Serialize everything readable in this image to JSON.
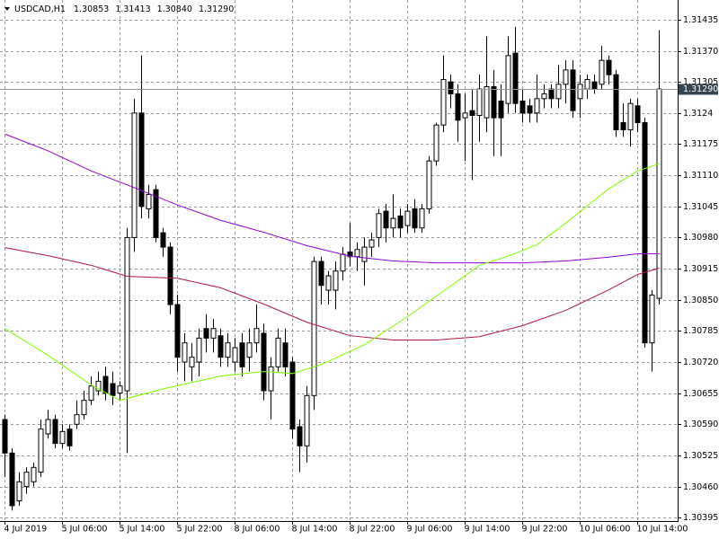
{
  "chart_data": {
    "type": "candlestick",
    "title": "USDCAD,H1",
    "ohlc_labels": [
      "1.30853",
      "1.31413",
      "1.30840",
      "1.31290"
    ],
    "categories": [
      "4 Jul 2019",
      null,
      null,
      null,
      null,
      null,
      null,
      null,
      "5 Jul 06:00",
      null,
      null,
      null,
      null,
      null,
      null,
      null,
      "5 Jul 14:00",
      null,
      null,
      null,
      null,
      null,
      null,
      null,
      "5 Jul 22:00",
      null,
      null,
      null,
      null,
      null,
      null,
      null,
      "8 Jul 06:00",
      null,
      null,
      null,
      null,
      null,
      null,
      null,
      "8 Jul 14:00",
      null,
      null,
      null,
      null,
      null,
      null,
      null,
      "8 Jul 22:00",
      null,
      null,
      null,
      null,
      null,
      null,
      null,
      "9 Jul 06:00",
      null,
      null,
      null,
      null,
      null,
      null,
      null,
      "9 Jul 14:00",
      null,
      null,
      null,
      null,
      null,
      null,
      null,
      "9 Jul 22:00",
      null,
      null,
      null,
      null,
      null,
      null,
      null,
      "10 Jul 06:00",
      null,
      null,
      null,
      null,
      null,
      null,
      null,
      "10 Jul 14:00",
      null,
      null,
      null
    ],
    "open": [
      1.306,
      1.3053,
      1.3043,
      1.3046,
      1.3047,
      1.3049,
      1.3057,
      1.306,
      1.3055,
      1.3058,
      1.3059,
      1.3061,
      1.3064,
      1.3066,
      1.3069,
      1.30675,
      1.30655,
      1.3066,
      1.3098,
      1.3124,
      1.3104,
      1.3108,
      1.3099,
      1.3096,
      1.3084,
      1.3072,
      1.3071,
      1.3072,
      1.3079,
      1.3077,
      1.30775,
      1.3073,
      1.3072,
      1.3076,
      1.3073,
      1.3076,
      1.3078,
      1.3066,
      1.3071,
      1.3076,
      1.3072,
      1.30585,
      1.30545,
      1.3065,
      1.3093,
      1.3087,
      1.3087,
      1.3091,
      1.3095,
      1.3094,
      1.3093,
      1.3096,
      1.3098,
      1.31035,
      1.31,
      1.31025,
      1.31005,
      1.3104,
      1.31,
      1.3104,
      1.3114,
      1.31215,
      1.31305,
      1.3128,
      1.3123,
      1.31245,
      1.31235,
      1.3123,
      1.31295,
      1.31265,
      1.3126,
      1.31365,
      1.31265,
      1.31255,
      1.3124,
      1.3127,
      1.3129,
      1.3127,
      1.313,
      1.3133,
      1.3127,
      1.3129,
      1.31305,
      1.313,
      1.3135,
      1.3132,
      1.3122,
      1.31205,
      1.31255,
      1.3122,
      1.3076,
      1.30853
    ],
    "high": [
      1.3061,
      1.3054,
      1.3049,
      1.305,
      1.3051,
      1.306,
      1.3062,
      1.3061,
      1.3059,
      1.3059,
      1.3064,
      1.3066,
      1.3069,
      1.307,
      1.3071,
      1.307,
      1.3068,
      1.31,
      1.3127,
      1.3136,
      1.3109,
      1.3109,
      1.31,
      1.3097,
      1.3086,
      1.3078,
      1.3076,
      1.3079,
      1.3082,
      1.3081,
      1.3079,
      1.3078,
      1.3077,
      1.3078,
      1.3079,
      1.3084,
      1.308,
      1.3073,
      1.3079,
      1.3079,
      1.3073,
      1.306,
      1.3067,
      1.3094,
      1.3094,
      1.3091,
      1.3093,
      1.3096,
      1.3101,
      1.3097,
      1.3098,
      1.3099,
      1.3104,
      1.3105,
      1.3107,
      1.3104,
      1.3105,
      1.3106,
      1.3105,
      1.3115,
      1.3122,
      1.3136,
      1.3132,
      1.313,
      1.3128,
      1.3129,
      1.3132,
      1.314,
      1.3133,
      1.313,
      1.314,
      1.3142,
      1.3129,
      1.3127,
      1.3132,
      1.313,
      1.313,
      1.3134,
      1.3135,
      1.3135,
      1.3132,
      1.3132,
      1.3132,
      1.3138,
      1.3136,
      1.3133,
      1.3126,
      1.3127,
      1.3127,
      1.3123,
      1.3087,
      1.31413
    ],
    "low": [
      1.3048,
      1.3041,
      1.3042,
      1.30445,
      1.3046,
      1.3048,
      1.3056,
      1.3054,
      1.3054,
      1.30535,
      1.3058,
      1.306,
      1.3063,
      1.3065,
      1.3064,
      1.3063,
      1.3064,
      1.3053,
      1.3095,
      1.3102,
      1.3102,
      1.3097,
      1.3094,
      1.3082,
      1.307,
      1.3068,
      1.3068,
      1.3069,
      1.3074,
      1.3074,
      1.3071,
      1.3071,
      1.307,
      1.3069,
      1.307,
      1.3074,
      1.3064,
      1.306,
      1.307,
      1.3069,
      1.3056,
      1.3049,
      1.3051,
      1.3062,
      1.3084,
      1.3084,
      1.3083,
      1.3089,
      1.3092,
      1.3091,
      1.3088,
      1.3094,
      1.3096,
      1.3097,
      1.3098,
      1.3098,
      1.3099,
      1.3099,
      1.3099,
      1.3103,
      1.3113,
      1.312,
      1.3125,
      1.3118,
      1.3114,
      1.311,
      1.3118,
      1.312,
      1.3115,
      1.3115,
      1.3124,
      1.3124,
      1.3122,
      1.3122,
      1.3122,
      1.3125,
      1.3125,
      1.3125,
      1.3126,
      1.3123,
      1.3123,
      1.3127,
      1.3128,
      1.3129,
      1.313,
      1.3119,
      1.3119,
      1.3117,
      1.312,
      1.3075,
      1.307,
      1.3084
    ],
    "close": [
      1.3053,
      1.3042,
      1.3047,
      1.3049,
      1.305,
      1.3058,
      1.306,
      1.3055,
      1.30575,
      1.30545,
      1.3061,
      1.3064,
      1.3067,
      1.3068,
      1.30655,
      1.3065,
      1.3067,
      1.3098,
      1.3124,
      1.31045,
      1.3107,
      1.3098,
      1.3096,
      1.3084,
      1.3073,
      1.3076,
      1.3073,
      1.3077,
      1.3077,
      1.3079,
      1.3073,
      1.3076,
      1.3075,
      1.3071,
      1.3076,
      1.3079,
      1.3066,
      1.3071,
      1.3077,
      1.3071,
      1.3058,
      1.30545,
      1.3065,
      1.3093,
      1.3088,
      1.309,
      1.3091,
      1.30945,
      1.3094,
      1.30955,
      1.3096,
      1.30975,
      1.3103,
      1.31,
      1.3102,
      1.31,
      1.31035,
      1.31,
      1.3104,
      1.3114,
      1.31215,
      1.3131,
      1.3128,
      1.31225,
      1.3124,
      1.31235,
      1.3129,
      1.31295,
      1.3123,
      1.3123,
      1.3136,
      1.3126,
      1.3124,
      1.3124,
      1.3127,
      1.3128,
      1.3127,
      1.313,
      1.3133,
      1.31245,
      1.313,
      1.3131,
      1.3129,
      1.3135,
      1.3132,
      1.31205,
      1.31205,
      1.3126,
      1.3122,
      1.3076,
      1.3086,
      1.3129
    ],
    "color_up": "#ffffff",
    "color_down": "#000000",
    "series": [
      {
        "color": "#9400d3",
        "x": [
          0,
          6,
          12,
          18,
          24,
          30,
          36,
          42,
          48,
          54,
          60,
          66,
          72,
          78,
          84,
          88,
          91
        ],
        "values": [
          1.31196,
          1.31161,
          1.31119,
          1.31084,
          1.31048,
          1.31016,
          1.30991,
          1.30963,
          1.30941,
          1.30931,
          1.30927,
          1.30927,
          1.30927,
          1.30931,
          1.30939,
          1.30946,
          1.30946
        ]
      },
      {
        "color": "#b0183c",
        "x": [
          0,
          6,
          12,
          17,
          24,
          30,
          36,
          42,
          48,
          54,
          60,
          66,
          72,
          78,
          84,
          88,
          91
        ],
        "values": [
          1.30959,
          1.30942,
          1.30922,
          1.30899,
          1.30895,
          1.30875,
          1.30841,
          1.30803,
          1.30775,
          1.30766,
          1.30766,
          1.30773,
          1.30796,
          1.30828,
          1.30871,
          1.30903,
          1.30916
        ]
      },
      {
        "color": "#7cfc00",
        "x": [
          0,
          6,
          12,
          16,
          22,
          30,
          36,
          40,
          44,
          50,
          56,
          62,
          66,
          70,
          74,
          78,
          84,
          88,
          91
        ],
        "values": [
          1.3079,
          1.30734,
          1.30672,
          1.3064,
          1.30664,
          1.30691,
          1.307,
          1.30696,
          1.30715,
          1.30756,
          1.30815,
          1.30879,
          1.30922,
          1.30941,
          1.30965,
          1.3101,
          1.31082,
          1.31119,
          1.31134
        ]
      }
    ],
    "ylim": [
      1.30388,
      1.31476
    ],
    "yticks": [
      1.31435,
      {
        "value": 1.3137,
        "label": "1.31370"
      },
      1.31305,
      1.3124,
      1.31175,
      {
        "value": 1.3111,
        "label": "1.31110"
      },
      1.31045,
      {
        "value": 1.3098,
        "label": "1.30980"
      },
      1.30915,
      {
        "value": 1.3085,
        "label": "1.30850"
      },
      1.30785,
      {
        "value": 1.3072,
        "label": "1.30720"
      },
      1.30655,
      {
        "value": 1.3059,
        "label": "1.30590"
      },
      1.30525,
      {
        "value": 1.3046,
        "label": "1.30460"
      },
      1.30395
    ],
    "grid": true
  }
}
